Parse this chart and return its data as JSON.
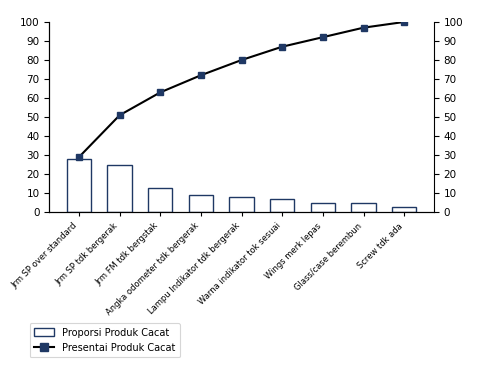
{
  "categories": [
    "Jrm SP over standard",
    "Jrm SP tdk bergerak",
    "Jrm FM tdk bergstak",
    "Angka odometer tdk bergerak",
    "Lampu Indikator tdk bergerak",
    "Warna indikator tok sesuai",
    "Wings merk lepas",
    "Glass/case berembun",
    "Screw tdk ada"
  ],
  "proportions": [
    28,
    25,
    13,
    9,
    8,
    7,
    5,
    5,
    3
  ],
  "cumulative": [
    29,
    51,
    63,
    72,
    80,
    87,
    92,
    97,
    100
  ],
  "bar_color": "#ffffff",
  "bar_edgecolor": "#1f3864",
  "line_color": "#000000",
  "marker_facecolor": "#1f3864",
  "marker_edgecolor": "#1f3864",
  "ylim": [
    0,
    100
  ],
  "yticks": [
    0,
    10,
    20,
    30,
    40,
    50,
    60,
    70,
    80,
    90,
    100
  ],
  "legend_bar": "Proporsi Produk Cacat",
  "legend_line": "Presentai Produk Cacat",
  "figsize": [
    4.93,
    3.66
  ],
  "dpi": 100
}
